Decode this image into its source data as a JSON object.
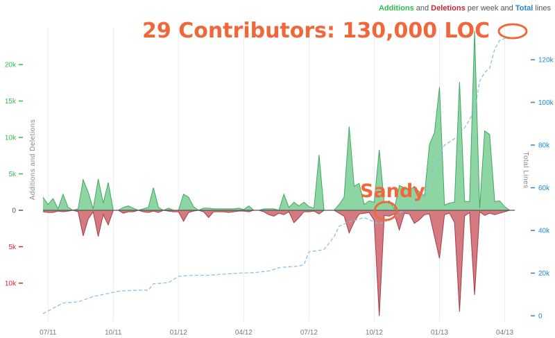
{
  "legend": {
    "additions_label": "Additions",
    "and_text": "and",
    "deletions_label": "Deletions",
    "per_week_and_text": "per week and",
    "total_label": "Total",
    "lines_text": "lines"
  },
  "colors": {
    "additions": "#2cbe4e",
    "additions_fill": "#8dd6a4",
    "additions_stroke": "#3fa85e",
    "deletions": "#cb2431",
    "deletions_fill": "#d47a80",
    "deletions_stroke": "#a63a43",
    "total": "#1d8ad6",
    "total_line": "#8cbfe6",
    "annotation": "#f0673a",
    "grid": "#ececec",
    "zero_line": "#555555"
  },
  "annotations": {
    "headline": "29 Contributors: 130,000 LOC",
    "sandy": "Sandy"
  },
  "chart_data": {
    "type": "area",
    "title": "",
    "xlabel": "",
    "ylabel": "Additions and Deletions",
    "y2label": "Total Lines",
    "x_ticks": [
      "07/11",
      "10/11",
      "01/12",
      "04/12",
      "07/12",
      "10/12",
      "01/13",
      "04/13"
    ],
    "y_ticks_left": [
      {
        "label": "20k",
        "value": 20000,
        "kind": "add"
      },
      {
        "label": "15k",
        "value": 15000,
        "kind": "add"
      },
      {
        "label": "10k",
        "value": 10000,
        "kind": "add"
      },
      {
        "label": "5k",
        "value": 5000,
        "kind": "add"
      },
      {
        "label": "0",
        "value": 0,
        "kind": "zero"
      },
      {
        "label": "5k",
        "value": -5000,
        "kind": "del"
      },
      {
        "label": "10k",
        "value": -10000,
        "kind": "del"
      }
    ],
    "y_ticks_right": [
      {
        "label": "120k",
        "value": 120000
      },
      {
        "label": "100k",
        "value": 100000
      },
      {
        "label": "80k",
        "value": 80000
      },
      {
        "label": "60k",
        "value": 60000
      },
      {
        "label": "40k",
        "value": 40000
      },
      {
        "label": "20k",
        "value": 20000
      },
      {
        "label": "0",
        "value": 0
      }
    ],
    "ylim_left": [
      -14500,
      25000
    ],
    "ylim_right": [
      0,
      135000
    ],
    "x_range_weeks": [
      -1,
      93
    ],
    "grid": true,
    "legend_position": "top-right",
    "additions": [
      [
        -1,
        1800
      ],
      [
        0,
        800
      ],
      [
        1,
        1600
      ],
      [
        2,
        200
      ],
      [
        3,
        2200
      ],
      [
        4,
        400
      ],
      [
        5,
        0
      ],
      [
        6,
        200
      ],
      [
        7,
        4200
      ],
      [
        8,
        2500
      ],
      [
        9,
        200
      ],
      [
        10,
        4300
      ],
      [
        11,
        1000
      ],
      [
        12,
        3800
      ],
      [
        13,
        0
      ],
      [
        14,
        0
      ],
      [
        15,
        400
      ],
      [
        16,
        600
      ],
      [
        17,
        300
      ],
      [
        18,
        0
      ],
      [
        19,
        200
      ],
      [
        20,
        400
      ],
      [
        21,
        3100
      ],
      [
        22,
        400
      ],
      [
        23,
        0
      ],
      [
        24,
        300
      ],
      [
        25,
        0
      ],
      [
        26,
        0
      ],
      [
        27,
        2200
      ],
      [
        28,
        1800
      ],
      [
        29,
        500
      ],
      [
        30,
        0
      ],
      [
        31,
        300
      ],
      [
        32,
        300
      ],
      [
        33,
        200
      ],
      [
        34,
        200
      ],
      [
        35,
        200
      ],
      [
        36,
        200
      ],
      [
        37,
        200
      ],
      [
        38,
        300
      ],
      [
        39,
        100
      ],
      [
        40,
        600
      ],
      [
        41,
        0
      ],
      [
        42,
        0
      ],
      [
        43,
        200
      ],
      [
        44,
        200
      ],
      [
        45,
        200
      ],
      [
        46,
        0
      ],
      [
        47,
        2200
      ],
      [
        48,
        400
      ],
      [
        49,
        1100
      ],
      [
        50,
        600
      ],
      [
        51,
        1100
      ],
      [
        52,
        500
      ],
      [
        53,
        300
      ],
      [
        54,
        7600
      ],
      [
        55,
        0
      ],
      [
        56,
        0
      ],
      [
        57,
        0
      ],
      [
        58,
        800
      ],
      [
        59,
        1800
      ],
      [
        60,
        11500
      ],
      [
        61,
        3300
      ],
      [
        62,
        3700
      ],
      [
        63,
        800
      ],
      [
        64,
        1300
      ],
      [
        65,
        1100
      ],
      [
        66,
        8300
      ],
      [
        67,
        1000
      ],
      [
        68,
        1300
      ],
      [
        69,
        200
      ],
      [
        70,
        3400
      ],
      [
        71,
        3100
      ],
      [
        72,
        2700
      ],
      [
        73,
        3300
      ],
      [
        74,
        2500
      ],
      [
        75,
        2000
      ],
      [
        76,
        9000
      ],
      [
        77,
        10700
      ],
      [
        78,
        16900
      ],
      [
        79,
        700
      ],
      [
        80,
        1000
      ],
      [
        81,
        1100
      ],
      [
        82,
        17600
      ],
      [
        83,
        1200
      ],
      [
        84,
        1200
      ],
      [
        85,
        24600
      ],
      [
        86,
        300
      ],
      [
        87,
        10900
      ],
      [
        88,
        10400
      ],
      [
        89,
        1200
      ],
      [
        90,
        1300
      ],
      [
        91,
        500
      ],
      [
        92,
        0
      ]
    ],
    "deletions": [
      [
        -1,
        -200
      ],
      [
        0,
        -300
      ],
      [
        1,
        -300
      ],
      [
        2,
        -100
      ],
      [
        3,
        -200
      ],
      [
        4,
        -100
      ],
      [
        5,
        0
      ],
      [
        6,
        -200
      ],
      [
        7,
        -3500
      ],
      [
        8,
        -1200
      ],
      [
        9,
        -200
      ],
      [
        10,
        -3600
      ],
      [
        11,
        -600
      ],
      [
        12,
        -2000
      ],
      [
        13,
        0
      ],
      [
        14,
        0
      ],
      [
        15,
        -400
      ],
      [
        16,
        -200
      ],
      [
        17,
        -200
      ],
      [
        18,
        0
      ],
      [
        19,
        -200
      ],
      [
        20,
        -300
      ],
      [
        21,
        -100
      ],
      [
        22,
        -300
      ],
      [
        23,
        0
      ],
      [
        24,
        -100
      ],
      [
        25,
        -200
      ],
      [
        26,
        -200
      ],
      [
        27,
        -1500
      ],
      [
        28,
        -300
      ],
      [
        29,
        -100
      ],
      [
        30,
        0
      ],
      [
        31,
        -200
      ],
      [
        32,
        -1000
      ],
      [
        33,
        -200
      ],
      [
        34,
        -200
      ],
      [
        35,
        -200
      ],
      [
        36,
        -300
      ],
      [
        37,
        -200
      ],
      [
        38,
        -100
      ],
      [
        39,
        -100
      ],
      [
        40,
        -200
      ],
      [
        41,
        0
      ],
      [
        42,
        0
      ],
      [
        43,
        -200
      ],
      [
        44,
        -600
      ],
      [
        45,
        -800
      ],
      [
        46,
        -400
      ],
      [
        47,
        -600
      ],
      [
        48,
        -200
      ],
      [
        49,
        -1700
      ],
      [
        50,
        -1000
      ],
      [
        51,
        -200
      ],
      [
        52,
        -200
      ],
      [
        53,
        -100
      ],
      [
        54,
        -500
      ],
      [
        55,
        0
      ],
      [
        56,
        0
      ],
      [
        57,
        0
      ],
      [
        58,
        -400
      ],
      [
        59,
        -800
      ],
      [
        60,
        -3100
      ],
      [
        61,
        -1600
      ],
      [
        62,
        -500
      ],
      [
        63,
        -400
      ],
      [
        64,
        -300
      ],
      [
        65,
        -1400
      ],
      [
        66,
        -14500
      ],
      [
        67,
        -700
      ],
      [
        68,
        -800
      ],
      [
        69,
        -500
      ],
      [
        70,
        -2700
      ],
      [
        71,
        -400
      ],
      [
        72,
        -500
      ],
      [
        73,
        -1800
      ],
      [
        74,
        -1300
      ],
      [
        75,
        -600
      ],
      [
        76,
        -500
      ],
      [
        77,
        -3600
      ],
      [
        78,
        -6600
      ],
      [
        79,
        -600
      ],
      [
        80,
        -400
      ],
      [
        81,
        -1700
      ],
      [
        82,
        -13900
      ],
      [
        83,
        -800
      ],
      [
        84,
        -300
      ],
      [
        85,
        -11600
      ],
      [
        86,
        -200
      ],
      [
        87,
        -700
      ],
      [
        88,
        -400
      ],
      [
        89,
        -600
      ],
      [
        90,
        -400
      ],
      [
        91,
        -200
      ],
      [
        92,
        0
      ]
    ],
    "total_lines": [
      [
        -1,
        1000
      ],
      [
        1,
        3500
      ],
      [
        3,
        6000
      ],
      [
        6,
        6500
      ],
      [
        9,
        9000
      ],
      [
        12,
        10500
      ],
      [
        14,
        11500
      ],
      [
        16,
        11800
      ],
      [
        18,
        12000
      ],
      [
        20,
        12000
      ],
      [
        21,
        15000
      ],
      [
        24,
        15500
      ],
      [
        26,
        18500
      ],
      [
        29,
        19000
      ],
      [
        32,
        19000
      ],
      [
        35,
        19500
      ],
      [
        38,
        20000
      ],
      [
        41,
        20200
      ],
      [
        44,
        21000
      ],
      [
        46,
        22500
      ],
      [
        48,
        23000
      ],
      [
        50,
        23300
      ],
      [
        51,
        24000
      ],
      [
        52,
        30000
      ],
      [
        55,
        31000
      ],
      [
        57,
        37000
      ],
      [
        58,
        42000
      ],
      [
        60,
        44000
      ],
      [
        63,
        46000
      ],
      [
        66,
        43000
      ],
      [
        69,
        46000
      ],
      [
        71,
        50000
      ],
      [
        73,
        52000
      ],
      [
        75,
        57000
      ],
      [
        77,
        70000
      ],
      [
        78,
        75000
      ],
      [
        79,
        80000
      ],
      [
        81,
        83000
      ],
      [
        83,
        88000
      ],
      [
        85,
        96000
      ],
      [
        86,
        110000
      ],
      [
        87,
        114000
      ],
      [
        88,
        116000
      ],
      [
        89,
        125000
      ],
      [
        90,
        129000
      ],
      [
        91,
        130000
      ],
      [
        92,
        130000
      ]
    ]
  }
}
